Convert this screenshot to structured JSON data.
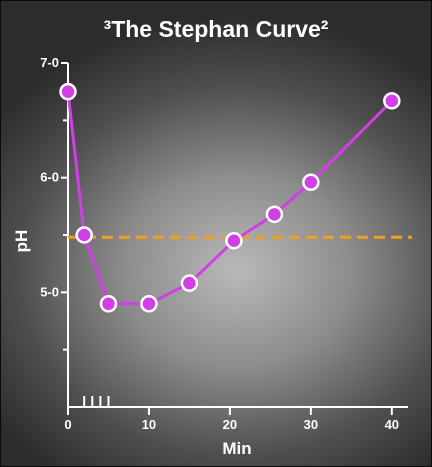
{
  "chart_data": {
    "type": "line",
    "title": "³The Stephan Curve²",
    "xlabel": "Min",
    "ylabel": "pH",
    "xlim": [
      0,
      42
    ],
    "ylim": [
      4.0,
      7.0
    ],
    "x_ticks": [
      0,
      10,
      20,
      30,
      40
    ],
    "x_tick_labels": [
      "0",
      "10",
      "20",
      "30",
      "40"
    ],
    "x_minor_ticks": [
      2,
      3,
      4,
      5
    ],
    "y_ticks": [
      7.0,
      6.0,
      5.0
    ],
    "y_tick_labels": [
      "7-0",
      "6-0",
      "5-0"
    ],
    "y_minor_ticks": [
      4.5,
      5.5,
      6.5
    ],
    "series": [
      {
        "color": "#d23fe6",
        "x": [
          0,
          2,
          5,
          10,
          15,
          20.5,
          25.5,
          30,
          40
        ],
        "y": [
          6.75,
          5.5,
          4.9,
          4.9,
          5.08,
          5.45,
          5.68,
          5.96,
          6.67
        ]
      }
    ],
    "reference_line": {
      "y": 5.48,
      "style": "dashed",
      "color": "#f0a020"
    },
    "grid": false,
    "legend": "none"
  }
}
